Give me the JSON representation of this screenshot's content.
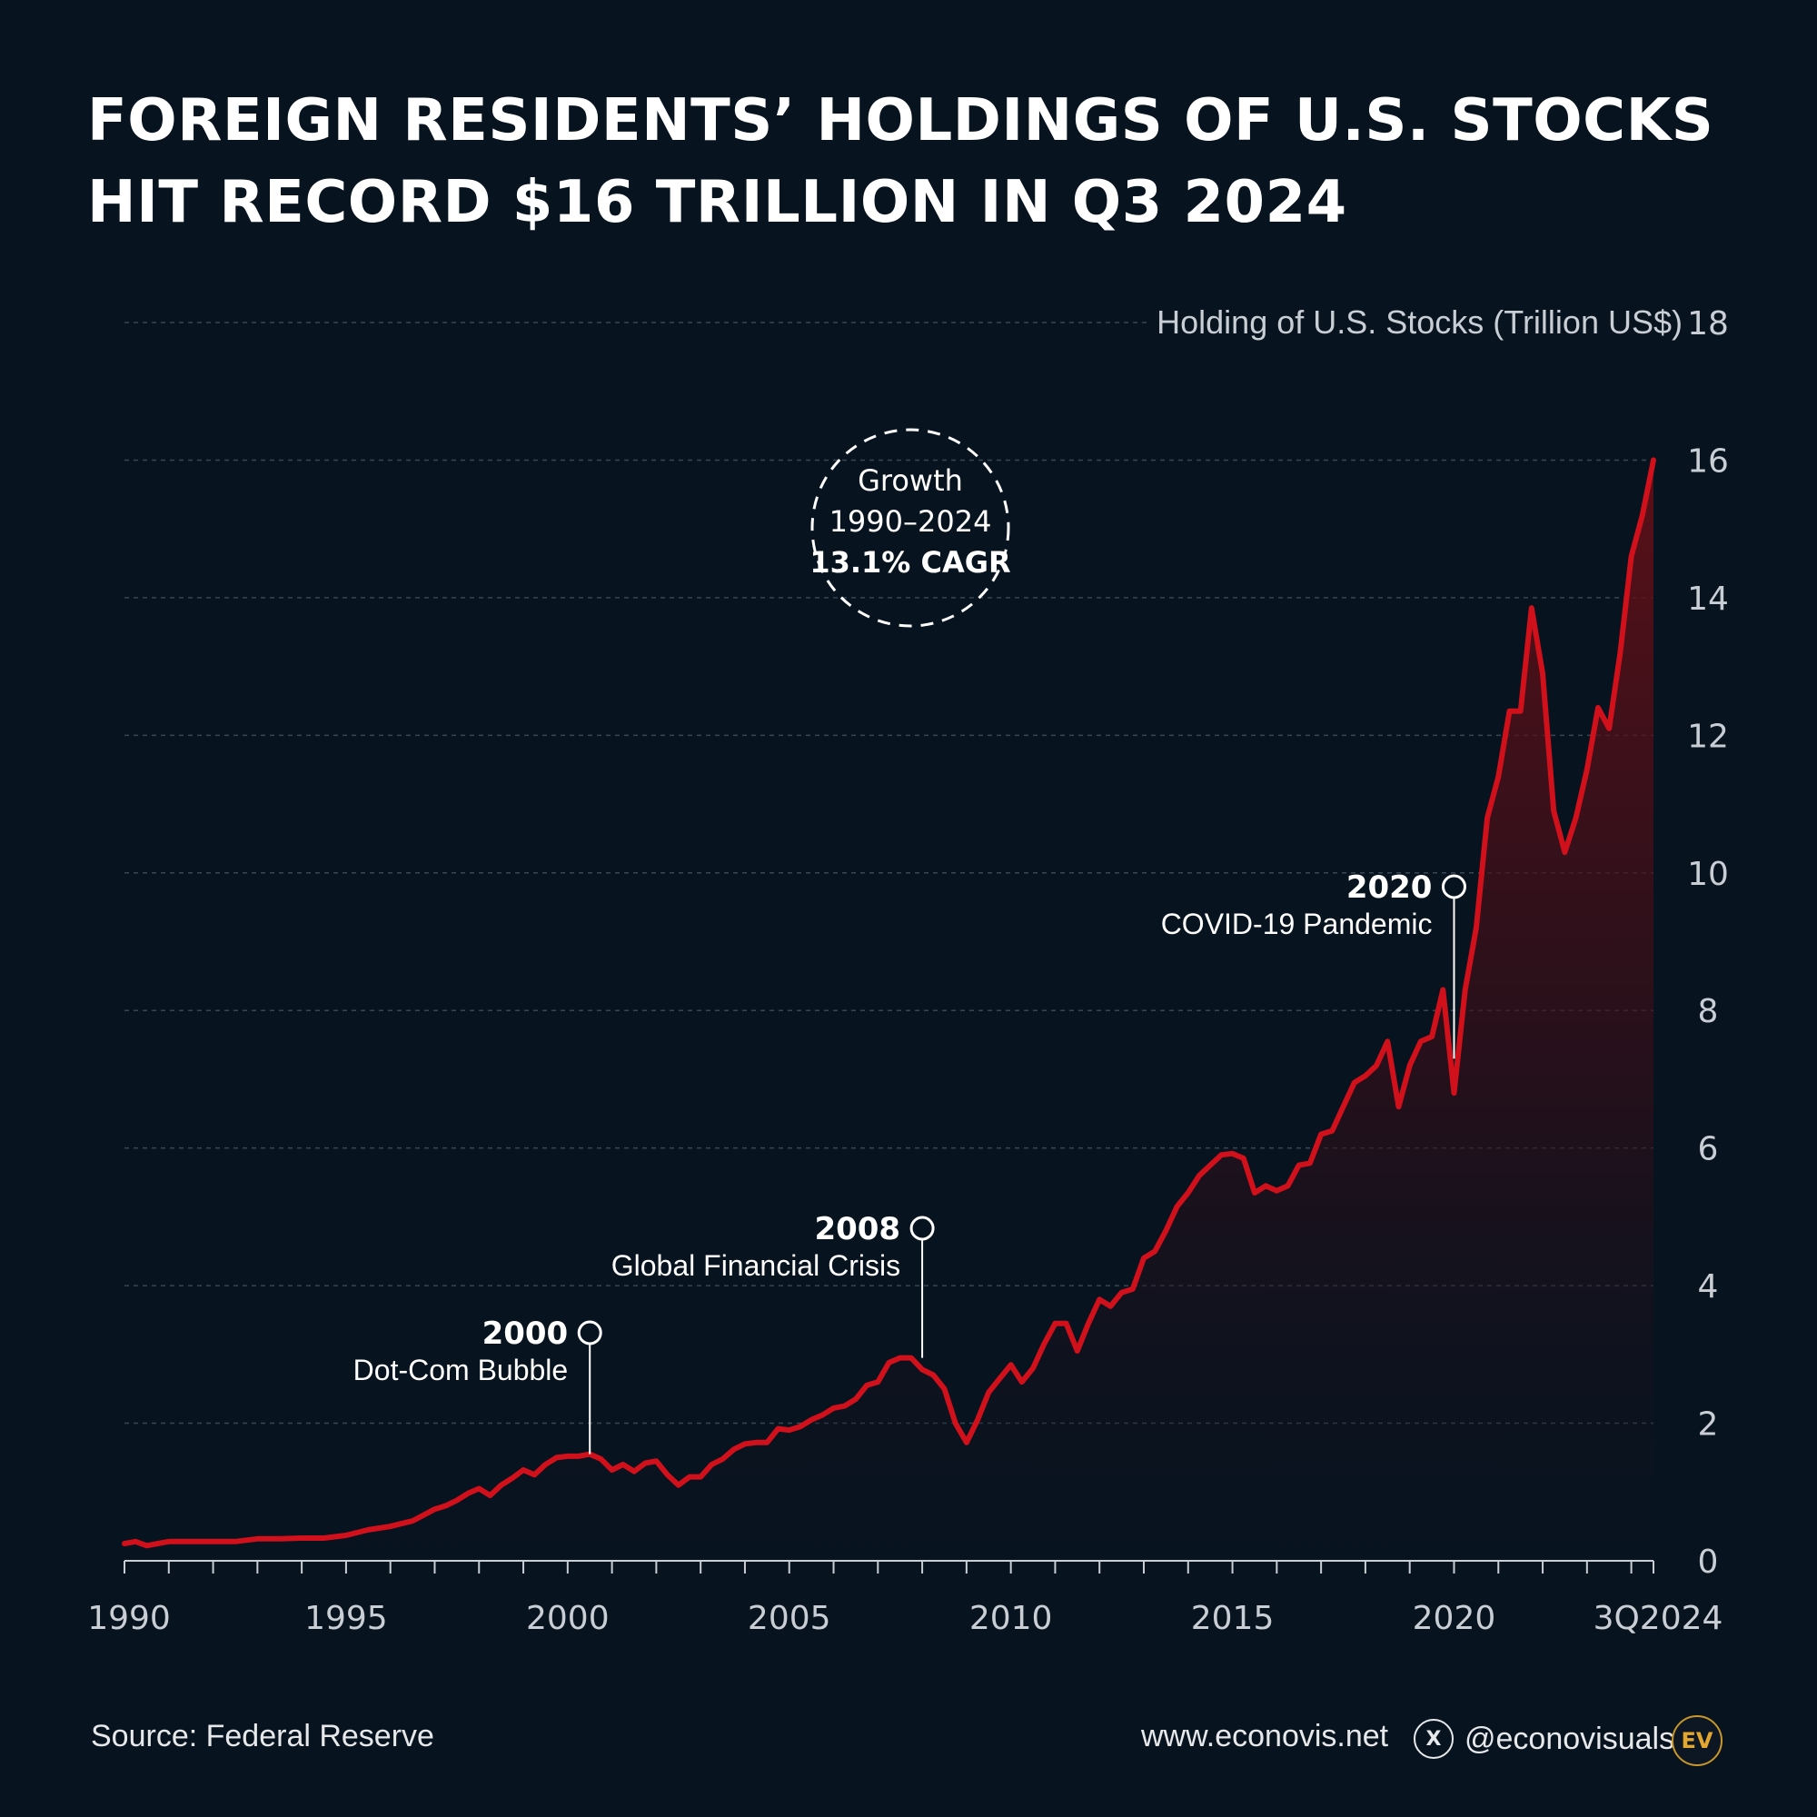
{
  "title": {
    "line1": "FOREIGN RESIDENTS’ HOLDINGS OF U.S. STOCKS",
    "line2": "HIT RECORD $16 TRILLION IN Q3 2024"
  },
  "footer": {
    "source": "Source: Federal Reserve",
    "website": "www.econovis.net",
    "handle": "@econovisuals",
    "x_icon": "x-logo-icon",
    "brand_logo_text": "EV"
  },
  "growth_badge": {
    "line1": "Growth",
    "line2": "1990–2024",
    "line3": "13.1% CAGR"
  },
  "colors": {
    "background": "#07131f",
    "line": "#d0101a",
    "area_top": "#6a0f17",
    "grid": "#3a4654",
    "brand": "#e3a72f"
  },
  "chart_data": {
    "type": "area",
    "title": "FOREIGN RESIDENTS’ HOLDINGS OF U.S. STOCKS HIT RECORD $16 TRILLION IN Q3 2024",
    "ylabel": "Holding of U.S. Stocks (Trillion US$)",
    "xlabel": "",
    "ylim": [
      0,
      18
    ],
    "xlim": [
      1990,
      2024.5
    ],
    "grid": true,
    "y_ticks": [
      0,
      2,
      4,
      6,
      8,
      10,
      12,
      14,
      16,
      18
    ],
    "x_tick_labels": [
      {
        "x": 1990,
        "label": "1990"
      },
      {
        "x": 1995,
        "label": "1995"
      },
      {
        "x": 2000,
        "label": "2000"
      },
      {
        "x": 2005,
        "label": "2005"
      },
      {
        "x": 2010,
        "label": "2010"
      },
      {
        "x": 2015,
        "label": "2015"
      },
      {
        "x": 2020,
        "label": "2020"
      },
      {
        "x": 2024.5,
        "label": "3Q2024"
      }
    ],
    "series": [
      {
        "name": "Holding of U.S. Stocks",
        "x": [
          1990,
          1990.25,
          1990.5,
          1990.75,
          1991,
          1991.5,
          1992,
          1992.5,
          1993,
          1993.5,
          1994,
          1994.5,
          1995,
          1995.5,
          1996,
          1996.5,
          1997,
          1997.25,
          1997.5,
          1997.75,
          1998,
          1998.25,
          1998.5,
          1998.75,
          1999,
          1999.25,
          1999.5,
          1999.75,
          2000,
          2000.25,
          2000.5,
          2000.75,
          2001,
          2001.25,
          2001.5,
          2001.75,
          2002,
          2002.25,
          2002.5,
          2002.75,
          2003,
          2003.25,
          2003.5,
          2003.75,
          2004,
          2004.25,
          2004.5,
          2004.75,
          2005,
          2005.25,
          2005.5,
          2005.75,
          2006,
          2006.25,
          2006.5,
          2006.75,
          2007,
          2007.25,
          2007.5,
          2007.75,
          2008,
          2008.25,
          2008.5,
          2008.75,
          2009,
          2009.25,
          2009.5,
          2009.75,
          2010,
          2010.25,
          2010.5,
          2010.75,
          2011,
          2011.25,
          2011.5,
          2011.75,
          2012,
          2012.25,
          2012.5,
          2012.75,
          2013,
          2013.25,
          2013.5,
          2013.75,
          2014,
          2014.25,
          2014.5,
          2014.75,
          2015,
          2015.25,
          2015.5,
          2015.75,
          2016,
          2016.25,
          2016.5,
          2016.75,
          2017,
          2017.25,
          2017.5,
          2017.75,
          2018,
          2018.25,
          2018.5,
          2018.75,
          2019,
          2019.25,
          2019.5,
          2019.75,
          2020,
          2020.25,
          2020.5,
          2020.75,
          2021,
          2021.25,
          2021.5,
          2021.75,
          2022,
          2022.25,
          2022.5,
          2022.75,
          2023,
          2023.25,
          2023.5,
          2023.75,
          2024,
          2024.25,
          2024.5
        ],
        "values": [
          0.25,
          0.28,
          0.22,
          0.25,
          0.28,
          0.28,
          0.28,
          0.28,
          0.32,
          0.32,
          0.33,
          0.33,
          0.37,
          0.45,
          0.5,
          0.58,
          0.75,
          0.8,
          0.88,
          0.98,
          1.05,
          0.95,
          1.1,
          1.2,
          1.32,
          1.25,
          1.4,
          1.5,
          1.52,
          1.52,
          1.55,
          1.48,
          1.32,
          1.4,
          1.3,
          1.42,
          1.45,
          1.25,
          1.1,
          1.22,
          1.22,
          1.4,
          1.48,
          1.62,
          1.7,
          1.72,
          1.72,
          1.92,
          1.9,
          1.95,
          2.05,
          2.12,
          2.22,
          2.25,
          2.35,
          2.55,
          2.6,
          2.88,
          2.95,
          2.95,
          2.78,
          2.7,
          2.5,
          2.0,
          1.72,
          2.05,
          2.45,
          2.65,
          2.85,
          2.6,
          2.8,
          3.15,
          3.45,
          3.45,
          3.05,
          3.45,
          3.8,
          3.7,
          3.9,
          3.95,
          4.4,
          4.5,
          4.8,
          5.15,
          5.35,
          5.6,
          5.75,
          5.9,
          5.92,
          5.85,
          5.35,
          5.45,
          5.38,
          5.45,
          5.75,
          5.78,
          6.2,
          6.25,
          6.6,
          6.95,
          7.05,
          7.2,
          7.55,
          6.6,
          7.2,
          7.55,
          7.62,
          8.3,
          6.8,
          8.3,
          9.2,
          10.8,
          11.4,
          12.35,
          12.35,
          13.85,
          12.9,
          10.9,
          10.3,
          10.8,
          11.5,
          12.4,
          12.1,
          13.2,
          14.6,
          15.2,
          16.0
        ]
      }
    ],
    "annotations": [
      {
        "x": 2000.5,
        "y": 1.55,
        "year": "2000",
        "label": "Dot-Com Bubble"
      },
      {
        "x": 2008.0,
        "y": 2.95,
        "year": "2008",
        "label": "Global Financial Crisis"
      },
      {
        "x": 2020.0,
        "y": 7.3,
        "year": "2020",
        "label": "COVID-19 Pandemic"
      }
    ]
  }
}
